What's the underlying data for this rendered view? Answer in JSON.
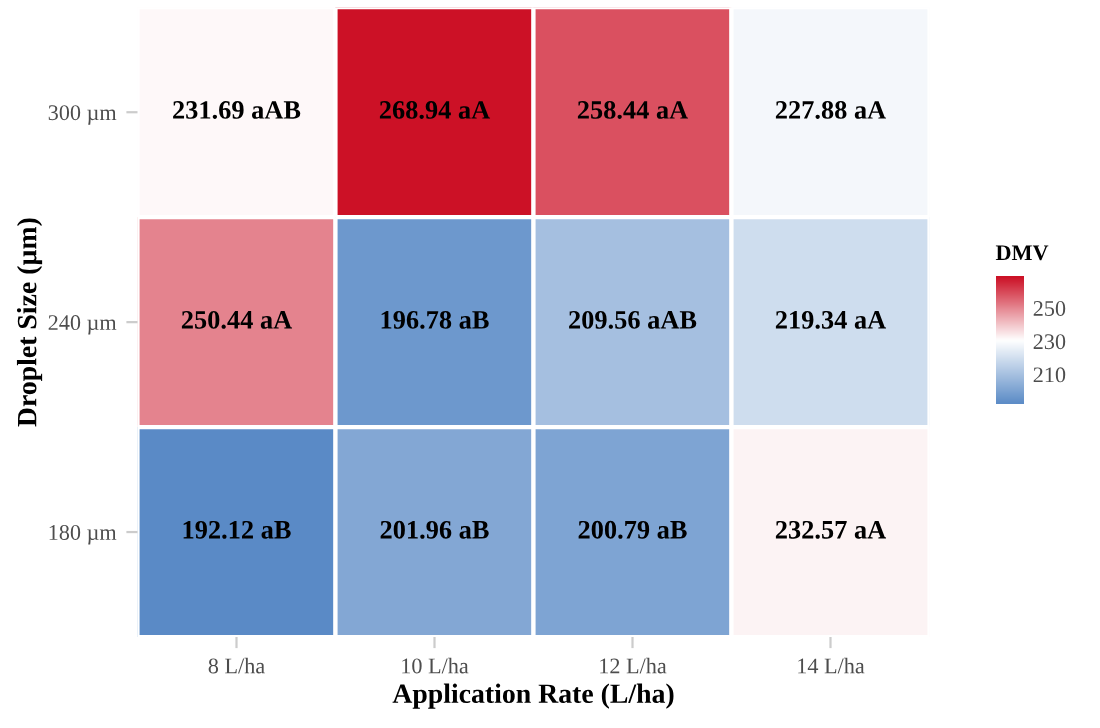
{
  "chart_data": {
    "type": "heatmap",
    "xlabel": "Application Rate (L/ha)",
    "ylabel": "Droplet Size (µm)",
    "clabel": "DMV",
    "categories": [
      "8 L/ha",
      "10 L/ha",
      "12 L/ha",
      "14 L/ha"
    ],
    "y_categories": [
      "300 µm",
      "240 µm",
      "180 µm"
    ],
    "cells": [
      [
        231.69,
        268.94,
        258.44,
        227.88
      ],
      [
        250.44,
        196.78,
        209.56,
        219.34
      ],
      [
        192.12,
        201.96,
        200.79,
        232.57
      ]
    ],
    "cell_labels": [
      [
        "231.69 aAB",
        "268.94 aA",
        "258.44 aA",
        "227.88 aA"
      ],
      [
        "250.44 aA",
        "196.78 aB",
        "209.56 aAB",
        "219.34 aA"
      ],
      [
        "192.12 aB",
        "201.96 aB",
        "200.79 aB",
        "232.57 aA"
      ]
    ],
    "clim": [
      192.12,
      268.94
    ],
    "cticks": [
      210,
      230,
      250
    ]
  }
}
